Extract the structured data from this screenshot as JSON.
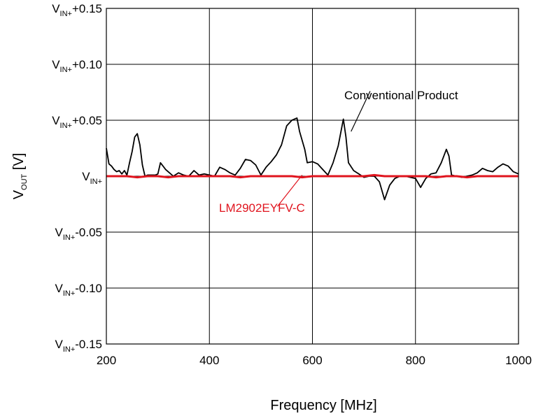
{
  "chart_data": {
    "type": "line",
    "xlabel": "Frequency [MHz]",
    "ylabel": {
      "main": "V",
      "sub": "OUT",
      "suffix": " [V]"
    },
    "xlim": [
      200,
      1000
    ],
    "ylim": [
      -0.15,
      0.15
    ],
    "x_ticks": [
      200,
      400,
      600,
      800,
      1000
    ],
    "x_tick_labels": [
      "200",
      "400",
      "600",
      "800",
      "1000"
    ],
    "y_ticks": [
      {
        "value": 0.15,
        "main": "V",
        "sub": "IN+",
        "suffix": "+0.15"
      },
      {
        "value": 0.1,
        "main": "V",
        "sub": "IN+",
        "suffix": "+0.10"
      },
      {
        "value": 0.05,
        "main": "V",
        "sub": "IN+",
        "suffix": "+0.05"
      },
      {
        "value": 0.0,
        "main": "V",
        "sub": "IN+",
        "suffix": ""
      },
      {
        "value": -0.05,
        "main": "V",
        "sub": "IN+",
        "suffix": "-0.05"
      },
      {
        "value": -0.1,
        "main": "V",
        "sub": "IN+",
        "suffix": "-0.10"
      },
      {
        "value": -0.15,
        "main": "V",
        "sub": "IN+",
        "suffix": "-0.15"
      }
    ],
    "grid": true,
    "series": [
      {
        "name": "Conventional Product",
        "color": "#000000",
        "x": [
          200,
          205,
          210,
          215,
          220,
          225,
          230,
          235,
          240,
          245,
          250,
          255,
          260,
          265,
          270,
          275,
          280,
          285,
          290,
          295,
          300,
          305,
          310,
          315,
          320,
          330,
          340,
          350,
          360,
          370,
          380,
          390,
          400,
          410,
          420,
          430,
          440,
          450,
          460,
          470,
          480,
          490,
          500,
          510,
          520,
          530,
          540,
          550,
          560,
          570,
          575,
          585,
          590,
          600,
          610,
          620,
          630,
          640,
          650,
          655,
          660,
          665,
          670,
          680,
          690,
          700,
          710,
          720,
          730,
          740,
          750,
          760,
          770,
          780,
          790,
          800,
          810,
          820,
          830,
          840,
          850,
          860,
          865,
          870,
          880,
          890,
          900,
          910,
          920,
          930,
          940,
          950,
          960,
          970,
          980,
          990,
          1000
        ],
        "y": [
          0.025,
          0.011,
          0.009,
          0.006,
          0.004,
          0.005,
          0.002,
          0.005,
          0.001,
          0.012,
          0.022,
          0.035,
          0.038,
          0.028,
          0.01,
          0.0,
          0.001,
          0.001,
          0.001,
          0.001,
          0.002,
          0.012,
          0.009,
          0.006,
          0.004,
          0.0,
          0.003,
          0.001,
          0.0,
          0.005,
          0.001,
          0.002,
          0.001,
          0.0,
          0.008,
          0.006,
          0.003,
          0.001,
          0.007,
          0.015,
          0.014,
          0.01,
          0.001,
          0.008,
          0.013,
          0.019,
          0.028,
          0.045,
          0.05,
          0.052,
          0.04,
          0.024,
          0.012,
          0.013,
          0.011,
          0.006,
          0.001,
          0.012,
          0.027,
          0.039,
          0.051,
          0.035,
          0.012,
          0.005,
          0.002,
          -0.001,
          0.0,
          0.0,
          -0.005,
          -0.021,
          -0.008,
          -0.002,
          0.0,
          0.0,
          -0.001,
          -0.002,
          -0.01,
          -0.002,
          0.002,
          0.003,
          0.012,
          0.024,
          0.018,
          0.001,
          0.0,
          -0.001,
          0.0,
          0.001,
          0.003,
          0.007,
          0.005,
          0.004,
          0.008,
          0.011,
          0.009,
          0.004,
          0.002
        ]
      },
      {
        "name": "LM2902EYFV-C",
        "color": "#e0141e",
        "x": [
          200,
          220,
          240,
          260,
          280,
          300,
          320,
          340,
          360,
          380,
          400,
          420,
          440,
          460,
          480,
          500,
          520,
          540,
          560,
          580,
          600,
          620,
          640,
          660,
          680,
          700,
          720,
          740,
          760,
          780,
          800,
          820,
          840,
          860,
          880,
          900,
          920,
          940,
          960,
          980,
          1000
        ],
        "y": [
          0.0,
          0.0,
          0.0,
          -0.001,
          0.0,
          0.0,
          -0.001,
          0.0,
          0.0,
          0.0,
          0.0,
          0.0,
          0.0,
          -0.001,
          0.0,
          0.0,
          0.0,
          0.0,
          0.0,
          -0.001,
          0.0,
          0.0,
          0.0,
          0.0,
          0.0,
          0.0,
          0.001,
          0.0,
          0.0,
          0.0,
          0.0,
          0.0,
          -0.001,
          0.0,
          0.0,
          -0.001,
          0.0,
          0.0,
          0.0,
          0.0,
          0.0
        ]
      }
    ],
    "annotations": [
      {
        "text": "Conventional Product",
        "series": 0,
        "color": "#000000"
      },
      {
        "text": "LM2902EYFV-C",
        "series": 1,
        "color": "#e0141e"
      }
    ]
  }
}
